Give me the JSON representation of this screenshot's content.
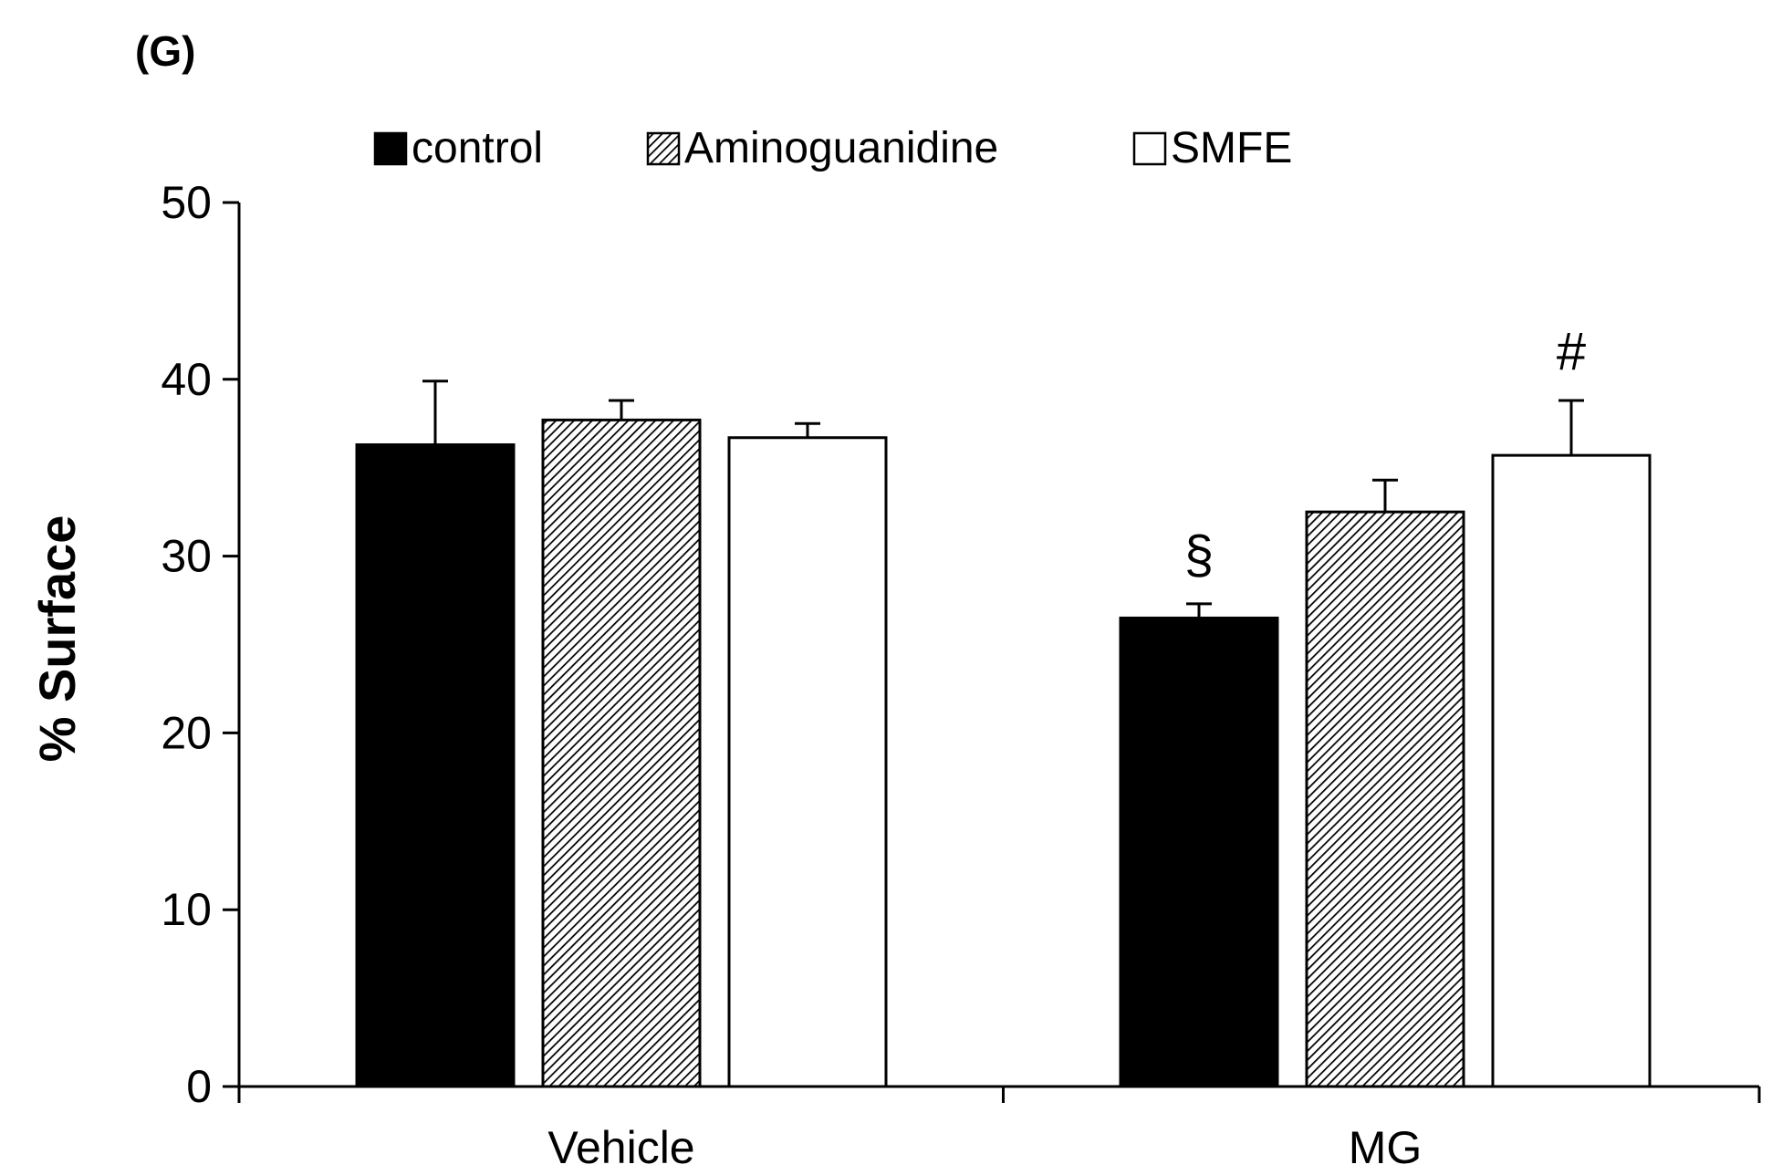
{
  "panel_label": "(G)",
  "chart_data": {
    "type": "bar",
    "title": "",
    "xlabel": "",
    "ylabel": "% Surface",
    "ylim": [
      0,
      50
    ],
    "yticks": [
      0,
      10,
      20,
      30,
      40,
      50
    ],
    "grid": false,
    "legend_position": "top",
    "categories": [
      "Vehicle",
      "MG"
    ],
    "series": [
      {
        "name": "control",
        "fill": "solid-black",
        "color": "#000000",
        "values": [
          36.3,
          26.5
        ],
        "errors": [
          3.6,
          0.8
        ]
      },
      {
        "name": "Aminoguanidine",
        "fill": "hatched",
        "color": "#000000",
        "values": [
          37.7,
          32.5
        ],
        "errors": [
          1.1,
          1.8
        ]
      },
      {
        "name": "SMFE",
        "fill": "white",
        "color": "#ffffff",
        "values": [
          36.7,
          35.7
        ],
        "errors": [
          0.8,
          3.1
        ]
      }
    ],
    "annotations": [
      {
        "text": "§",
        "category": "MG",
        "series": "control"
      },
      {
        "text": "#",
        "category": "MG",
        "series": "SMFE"
      }
    ]
  }
}
